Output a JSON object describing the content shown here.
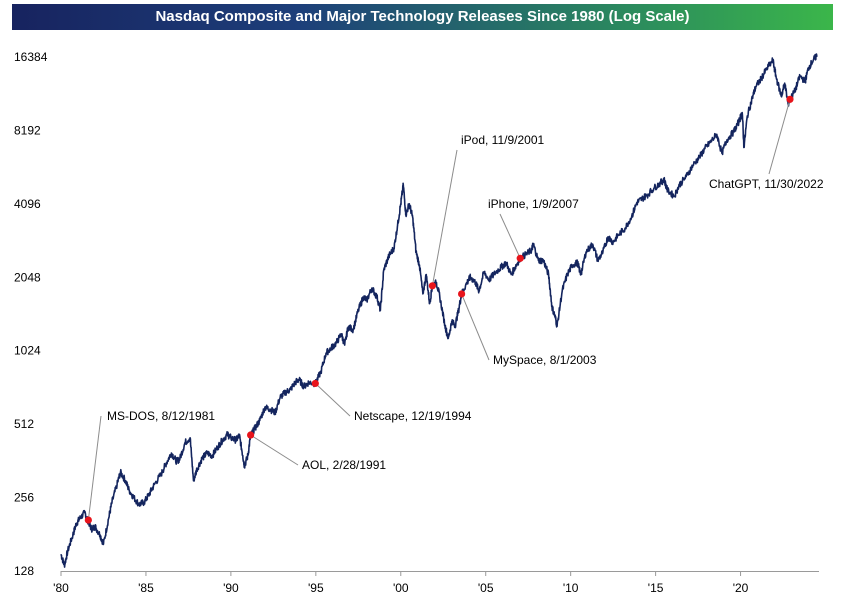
{
  "chart_data": {
    "type": "line",
    "title": "Nasdaq Composite and Major Technology Releases Since 1980 (Log Scale)",
    "y_scale": "log2",
    "ylim": [
      128,
      16384
    ],
    "xlim": [
      1980,
      2024.5
    ],
    "y_ticks": [
      128,
      256,
      512,
      1024,
      2048,
      4096,
      8192,
      16384
    ],
    "y_tick_labels": [
      "128",
      "256",
      "512",
      "1024",
      "2048",
      "4096",
      "8192",
      "16384"
    ],
    "x_ticks": [
      1980,
      1985,
      1990,
      1995,
      2000,
      2005,
      2010,
      2015,
      2020
    ],
    "x_tick_labels": [
      "'80",
      "'85",
      "'90",
      "'95",
      "'00",
      "'05",
      "'10",
      "'15",
      "'20"
    ],
    "series": [
      {
        "name": "Nasdaq Composite",
        "color": "#14255e",
        "points": [
          [
            1980.0,
            150
          ],
          [
            1980.2,
            135
          ],
          [
            1980.4,
            155
          ],
          [
            1980.7,
            180
          ],
          [
            1980.9,
            200
          ],
          [
            1981.1,
            210
          ],
          [
            1981.4,
            222
          ],
          [
            1981.6,
            205
          ],
          [
            1981.8,
            190
          ],
          [
            1982.0,
            195
          ],
          [
            1982.3,
            180
          ],
          [
            1982.5,
            165
          ],
          [
            1982.8,
            210
          ],
          [
            1983.0,
            245
          ],
          [
            1983.3,
            290
          ],
          [
            1983.5,
            325
          ],
          [
            1983.8,
            300
          ],
          [
            1984.0,
            275
          ],
          [
            1984.3,
            255
          ],
          [
            1984.6,
            240
          ],
          [
            1984.9,
            245
          ],
          [
            1985.2,
            265
          ],
          [
            1985.5,
            290
          ],
          [
            1985.9,
            320
          ],
          [
            1986.2,
            355
          ],
          [
            1986.5,
            390
          ],
          [
            1986.8,
            360
          ],
          [
            1987.0,
            370
          ],
          [
            1987.3,
            430
          ],
          [
            1987.6,
            450
          ],
          [
            1987.8,
            300
          ],
          [
            1988.0,
            335
          ],
          [
            1988.3,
            370
          ],
          [
            1988.6,
            390
          ],
          [
            1988.9,
            380
          ],
          [
            1989.2,
            410
          ],
          [
            1989.5,
            440
          ],
          [
            1989.8,
            465
          ],
          [
            1990.0,
            450
          ],
          [
            1990.3,
            440
          ],
          [
            1990.5,
            460
          ],
          [
            1990.7,
            380
          ],
          [
            1990.8,
            345
          ],
          [
            1991.0,
            380
          ],
          [
            1991.16,
            460
          ],
          [
            1991.4,
            490
          ],
          [
            1991.7,
            530
          ],
          [
            1992.0,
            600
          ],
          [
            1992.3,
            590
          ],
          [
            1992.6,
            570
          ],
          [
            1992.9,
            660
          ],
          [
            1993.2,
            690
          ],
          [
            1993.5,
            710
          ],
          [
            1993.8,
            760
          ],
          [
            1994.0,
            780
          ],
          [
            1994.3,
            730
          ],
          [
            1994.6,
            760
          ],
          [
            1994.97,
            750
          ],
          [
            1995.3,
            840
          ],
          [
            1995.6,
            1000
          ],
          [
            1995.9,
            1050
          ],
          [
            1996.2,
            1100
          ],
          [
            1996.5,
            1200
          ],
          [
            1996.7,
            1080
          ],
          [
            1996.9,
            1280
          ],
          [
            1997.2,
            1250
          ],
          [
            1997.5,
            1500
          ],
          [
            1997.8,
            1700
          ],
          [
            1998.0,
            1650
          ],
          [
            1998.3,
            1850
          ],
          [
            1998.6,
            1700
          ],
          [
            1998.8,
            1500
          ],
          [
            1999.0,
            2200
          ],
          [
            1999.3,
            2500
          ],
          [
            1999.6,
            2700
          ],
          [
            1999.8,
            3300
          ],
          [
            2000.0,
            4100
          ],
          [
            2000.15,
            4900
          ],
          [
            2000.3,
            3700
          ],
          [
            2000.5,
            4100
          ],
          [
            2000.7,
            3600
          ],
          [
            2000.9,
            2600
          ],
          [
            2001.1,
            2300
          ],
          [
            2001.3,
            1750
          ],
          [
            2001.5,
            2100
          ],
          [
            2001.7,
            1600
          ],
          [
            2001.86,
            1890
          ],
          [
            2002.1,
            1950
          ],
          [
            2002.3,
            1700
          ],
          [
            2002.6,
            1300
          ],
          [
            2002.8,
            1150
          ],
          [
            2003.0,
            1350
          ],
          [
            2003.2,
            1300
          ],
          [
            2003.4,
            1500
          ],
          [
            2003.58,
            1750
          ],
          [
            2003.9,
            1950
          ],
          [
            2004.1,
            2050
          ],
          [
            2004.4,
            1950
          ],
          [
            2004.6,
            1800
          ],
          [
            2004.9,
            2150
          ],
          [
            2005.2,
            2000
          ],
          [
            2005.6,
            2150
          ],
          [
            2005.9,
            2250
          ],
          [
            2006.2,
            2350
          ],
          [
            2006.5,
            2100
          ],
          [
            2006.8,
            2300
          ],
          [
            2007.03,
            2450
          ],
          [
            2007.4,
            2550
          ],
          [
            2007.7,
            2650
          ],
          [
            2007.8,
            2800
          ],
          [
            2008.1,
            2400
          ],
          [
            2008.4,
            2400
          ],
          [
            2008.7,
            2100
          ],
          [
            2008.9,
            1550
          ],
          [
            2009.1,
            1400
          ],
          [
            2009.2,
            1290
          ],
          [
            2009.5,
            1800
          ],
          [
            2009.8,
            2100
          ],
          [
            2010.1,
            2300
          ],
          [
            2010.4,
            2350
          ],
          [
            2010.6,
            2100
          ],
          [
            2010.9,
            2600
          ],
          [
            2011.3,
            2800
          ],
          [
            2011.6,
            2400
          ],
          [
            2011.9,
            2600
          ],
          [
            2012.2,
            3000
          ],
          [
            2012.5,
            2850
          ],
          [
            2012.8,
            3050
          ],
          [
            2013.2,
            3250
          ],
          [
            2013.6,
            3650
          ],
          [
            2013.9,
            4150
          ],
          [
            2014.2,
            4300
          ],
          [
            2014.5,
            4450
          ],
          [
            2014.9,
            4750
          ],
          [
            2015.3,
            5000
          ],
          [
            2015.5,
            5150
          ],
          [
            2015.7,
            4650
          ],
          [
            2016.1,
            4400
          ],
          [
            2016.4,
            4900
          ],
          [
            2016.8,
            5300
          ],
          [
            2017.2,
            5900
          ],
          [
            2017.6,
            6400
          ],
          [
            2017.9,
            6900
          ],
          [
            2018.2,
            7300
          ],
          [
            2018.6,
            7900
          ],
          [
            2018.9,
            6600
          ],
          [
            2019.2,
            7500
          ],
          [
            2019.6,
            8100
          ],
          [
            2019.9,
            8900
          ],
          [
            2020.1,
            9700
          ],
          [
            2020.2,
            7000
          ],
          [
            2020.4,
            9400
          ],
          [
            2020.7,
            11200
          ],
          [
            2020.9,
            12400
          ],
          [
            2021.2,
            13300
          ],
          [
            2021.5,
            14500
          ],
          [
            2021.9,
            15900
          ],
          [
            2022.1,
            13500
          ],
          [
            2022.4,
            11300
          ],
          [
            2022.6,
            12800
          ],
          [
            2022.8,
            10500
          ],
          [
            2022.91,
            10990
          ],
          [
            2023.2,
            11900
          ],
          [
            2023.5,
            13700
          ],
          [
            2023.8,
            13000
          ],
          [
            2024.0,
            14800
          ],
          [
            2024.3,
            16000
          ],
          [
            2024.5,
            16600
          ]
        ]
      }
    ],
    "events": [
      {
        "label": "MS-DOS, 8/12/1981",
        "x": 1981.61,
        "y": 207
      },
      {
        "label": "AOL, 2/28/1991",
        "x": 1991.16,
        "y": 462
      },
      {
        "label": "Netscape, 12/19/1994",
        "x": 1994.97,
        "y": 752
      },
      {
        "label": "iPod, 11/9/2001",
        "x": 2001.86,
        "y": 1890
      },
      {
        "label": "MySpace, 8/1/2003",
        "x": 2003.58,
        "y": 1750
      },
      {
        "label": "iPhone, 1/9/2007",
        "x": 2007.03,
        "y": 2450
      },
      {
        "label": "ChatGPT, 11/30/2022",
        "x": 2022.91,
        "y": 10990
      }
    ]
  }
}
